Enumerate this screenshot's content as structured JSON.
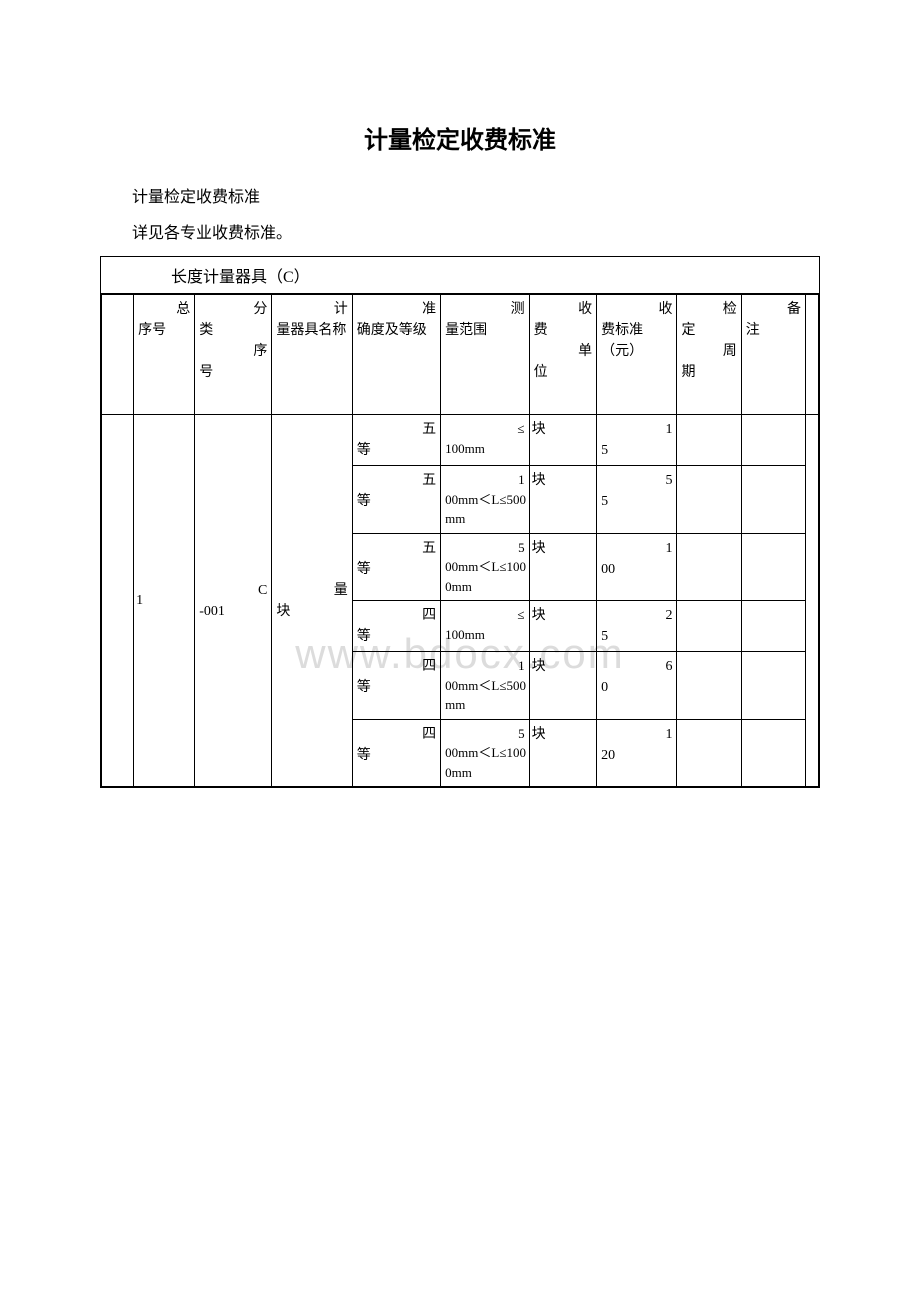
{
  "page": {
    "title": "计量检定收费标准",
    "subtitle1": "计量检定收费标准",
    "subtitle2": "详见各专业收费标准。",
    "section_header": "长度计量器具（C）",
    "watermark": "www.bdocx.com"
  },
  "table": {
    "headers": {
      "seq_top": "总",
      "seq_bot": "序号",
      "class_top": "分",
      "class_mid": "类",
      "class_sub": "序",
      "class_bot": "号",
      "name_top": "计",
      "name_bot": "量器具名称",
      "accuracy_top": "准",
      "accuracy_bot": "确度及等级",
      "range_top": "测",
      "range_bot": "量范围",
      "unit_top": "收",
      "unit_mid": "费",
      "unit_sub": "单",
      "unit_bot": "位",
      "fee_top": "收",
      "fee_bot": "费标准（元）",
      "period_top": "检",
      "period_mid": "定",
      "period_sub": "周",
      "period_bot": "期",
      "note_top": "备",
      "note_bot": "注"
    },
    "merged": {
      "seq": "1",
      "class_code": "C-001",
      "name_top": "量",
      "name_bot": "块"
    },
    "rows": [
      {
        "accuracy_top": "五",
        "accuracy_bot": "等",
        "range_top": "≤",
        "range_bot": "100mm",
        "unit": "块",
        "fee_top": "1",
        "fee_bot": "5",
        "period": "",
        "note": ""
      },
      {
        "accuracy_top": "五",
        "accuracy_bot": "等",
        "range_top": "1",
        "range_bot": "00mm＜L≤500mm",
        "unit": "块",
        "fee_top": "5",
        "fee_bot": "5",
        "period": "",
        "note": ""
      },
      {
        "accuracy_top": "五",
        "accuracy_bot": "等",
        "range_top": "5",
        "range_bot": "00mm＜L≤1000mm",
        "unit": "块",
        "fee_top": "1",
        "fee_bot": "00",
        "period": "",
        "note": ""
      },
      {
        "accuracy_top": "四",
        "accuracy_bot": "等",
        "range_top": "≤",
        "range_bot": "100mm",
        "unit": "块",
        "fee_top": "2",
        "fee_bot": "5",
        "period": "",
        "note": ""
      },
      {
        "accuracy_top": "四",
        "accuracy_bot": "等",
        "range_top": "1",
        "range_bot": "00mm＜L≤500mm",
        "unit": "块",
        "fee_top": "6",
        "fee_bot": "0",
        "period": "",
        "note": ""
      },
      {
        "accuracy_top": "四",
        "accuracy_bot": "等",
        "range_top": "5",
        "range_bot": "00mm＜L≤1000mm",
        "unit": "块",
        "fee_top": "1",
        "fee_bot": "20",
        "period": "",
        "note": ""
      }
    ]
  },
  "style": {
    "border_color": "#000000",
    "background_color": "#ffffff",
    "watermark_color": "#dcdcdc",
    "title_fontsize": 24,
    "body_fontsize": 16,
    "cell_fontsize": 14
  }
}
